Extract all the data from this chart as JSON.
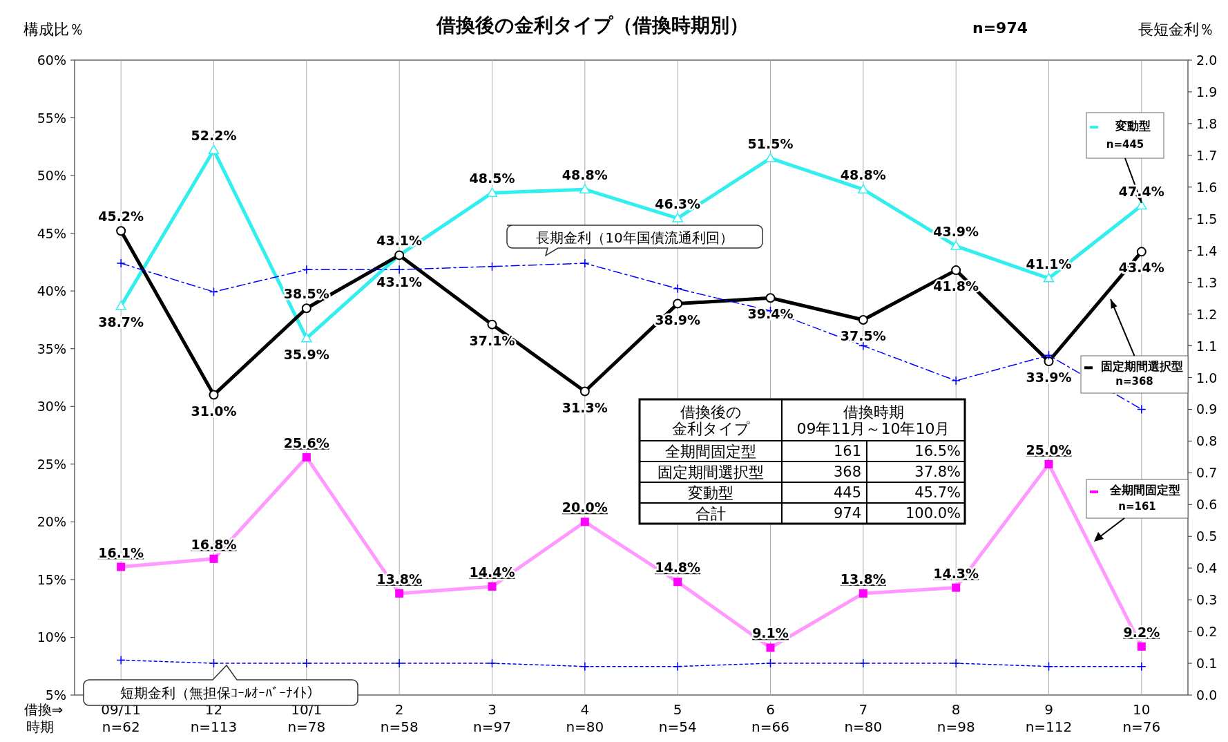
{
  "chart_data": {
    "type": "line",
    "title": "借換後の金利タイプ（借換時期別）",
    "ylabel": "構成比％",
    "y2label": "長短金利％",
    "categories": [
      "09/11\nn=62",
      "12\nn=113",
      "10/1\nn=78",
      "2\nn=58",
      "3\nn=97",
      "4\nn=80",
      "5\nn=54",
      "6\nn=66",
      "7\nn=80",
      "8\nn=98",
      "9\nn=112",
      "10\nn=76"
    ],
    "ylim": [
      5,
      60
    ],
    "yticks": [
      {
        "value": 5,
        "label": "5%"
      },
      {
        "value": 10,
        "label": "10%"
      },
      {
        "value": 15,
        "label": "15%"
      },
      {
        "value": 20,
        "label": "20%"
      },
      {
        "value": 25,
        "label": "25%"
      },
      {
        "value": 30,
        "label": "30%"
      },
      {
        "value": 35,
        "label": "35%"
      },
      {
        "value": 40,
        "label": "40%"
      },
      {
        "value": 45,
        "label": "45%"
      },
      {
        "value": 50,
        "label": "50%"
      },
      {
        "value": 55,
        "label": "55%"
      },
      {
        "value": 60,
        "label": "60%"
      }
    ],
    "y2lim": [
      0,
      2
    ],
    "y2ticks": [
      {
        "value": 0,
        "label": "0.0"
      },
      {
        "value": 0.1,
        "label": "0.1"
      },
      {
        "value": 0.2,
        "label": "0.2"
      },
      {
        "value": 0.3,
        "label": "0.3"
      },
      {
        "value": 0.4,
        "label": "0.4"
      },
      {
        "value": 0.5,
        "label": "0.5"
      },
      {
        "value": 0.6,
        "label": "0.6"
      },
      {
        "value": 0.7,
        "label": "0.7"
      },
      {
        "value": 0.8,
        "label": "0.8"
      },
      {
        "value": 0.9,
        "label": "0.9"
      },
      {
        "value": 1,
        "label": "1.0"
      },
      {
        "value": 1.1,
        "label": "1.1"
      },
      {
        "value": 1.2,
        "label": "1.2"
      },
      {
        "value": 1.3,
        "label": "1.3"
      },
      {
        "value": 1.4,
        "label": "1.4"
      },
      {
        "value": 1.5,
        "label": "1.5"
      },
      {
        "value": 1.6,
        "label": "1.6"
      },
      {
        "value": 1.7,
        "label": "1.7"
      },
      {
        "value": 1.8,
        "label": "1.8"
      },
      {
        "value": 1.9,
        "label": "1.9"
      },
      {
        "value": 2,
        "label": "2.0"
      }
    ],
    "grid": "x",
    "legend": "right",
    "series": [
      {
        "name": "変動型",
        "color": "#33eeee",
        "marker": "triangle",
        "line_style": "solid",
        "values": [
          38.7,
          52.2,
          35.9,
          43.1,
          48.5,
          48.8,
          46.3,
          51.5,
          48.8,
          43.9,
          41.1,
          47.4
        ],
        "value_labels": [
          "38.7%",
          "52.2%",
          "35.9%",
          "43.1%",
          "48.5%",
          "48.8%",
          "46.3%",
          "51.5%",
          "48.8%",
          "43.9%",
          "41.1%",
          "47.4%"
        ]
      },
      {
        "name": "固定期間選択型",
        "color": "#000000",
        "marker": "circle",
        "line_style": "solid",
        "values": [
          45.2,
          31.0,
          38.5,
          43.1,
          37.1,
          31.3,
          38.9,
          39.4,
          37.5,
          41.8,
          33.9,
          43.4
        ],
        "value_labels": [
          "45.2%",
          "31.0%",
          "38.5%",
          "43.1%",
          "37.1%",
          "31.3%",
          "38.9%",
          "39.4%",
          "37.5%",
          "41.8%",
          "33.9%",
          "43.4%"
        ]
      },
      {
        "name": "全期間固定型",
        "color": "#ff00ff",
        "marker": "square",
        "line_style": "solid",
        "values": [
          16.1,
          16.8,
          25.6,
          13.8,
          14.4,
          20.0,
          14.8,
          9.1,
          13.8,
          14.3,
          25.0,
          9.2
        ],
        "value_labels": [
          "16.1%",
          "16.8%",
          "25.6%",
          "13.8%",
          "14.4%",
          "20.0%",
          "14.8%",
          "9.1%",
          "13.8%",
          "14.3%",
          "25.0%",
          "9.2%"
        ]
      },
      {
        "name": "長期金利（10年国債流通利回）",
        "color": "#0000ff",
        "marker": "cross",
        "line_style": "dashed",
        "axis": "y2",
        "values": [
          1.36,
          1.27,
          1.34,
          1.34,
          1.35,
          1.36,
          1.28,
          1.21,
          1.1,
          0.99,
          1.07,
          0.9
        ]
      },
      {
        "name": "短期金利（無担保ｺｰﾙｵｰﾊﾞｰﾅｲﾄ）",
        "color": "#0000ff",
        "marker": "cross",
        "line_style": "dotted",
        "axis": "y2",
        "values": [
          0.11,
          0.1,
          0.1,
          0.1,
          0.1,
          0.09,
          0.09,
          0.1,
          0.1,
          0.1,
          0.09,
          0.09
        ]
      }
    ],
    "annotations": [
      "n=974",
      "借換⇒",
      "時期",
      {
        "text": "n=445",
        "x": "10\nn=76",
        "y": 47.4
      },
      "n=368",
      "n=161",
      "借換後の金利タイプ",
      "借換時期\n09年11月～10年10月",
      "全期間固定型",
      "161",
      "16.5%",
      "固定期間選択型",
      "368",
      "37.8%",
      "変動型",
      "445",
      "45.7%",
      "合計",
      "974",
      "100.0%"
    ]
  }
}
